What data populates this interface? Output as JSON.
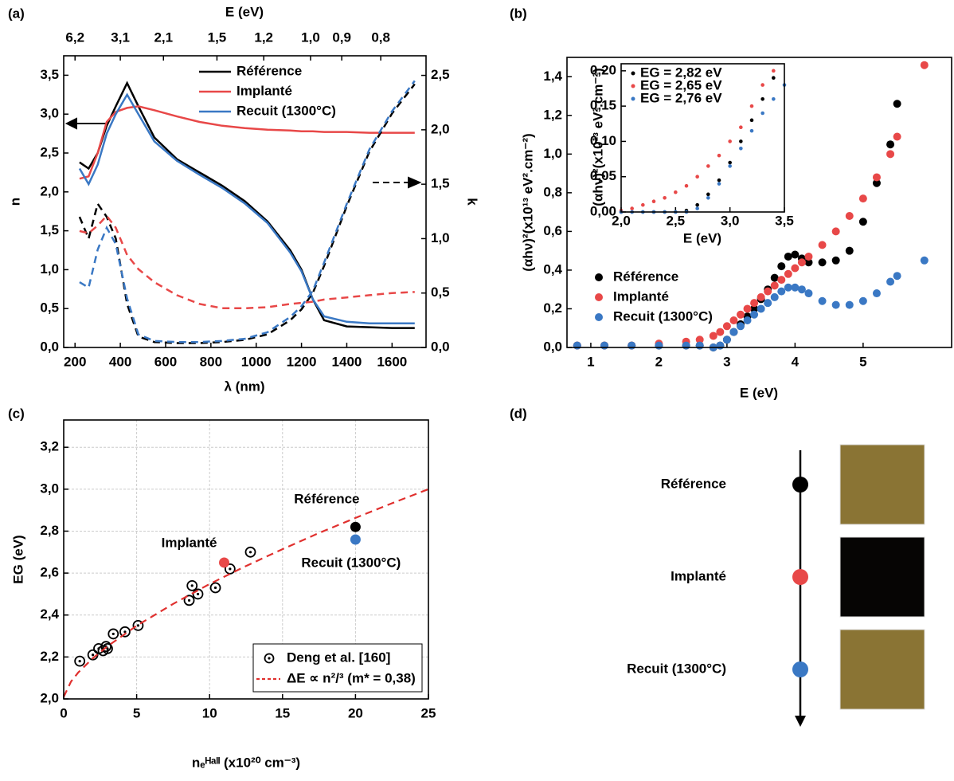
{
  "chart_data": [
    {
      "type": "line",
      "label": "(a)",
      "xlabel": "λ (nm)",
      "ylabel": "n",
      "y2label": "k",
      "x2label": "E (eV)",
      "x": [
        220,
        260,
        300,
        340,
        380,
        430,
        480,
        550,
        650,
        750,
        850,
        950,
        1050,
        1150,
        1200,
        1250,
        1300,
        1400,
        1500,
        1600,
        1700
      ],
      "series": [
        {
          "name": "Référence",
          "color": "#000000",
          "values": [
            2.38,
            2.3,
            2.5,
            2.85,
            3.1,
            3.4,
            3.1,
            2.7,
            2.42,
            2.25,
            2.08,
            1.88,
            1.62,
            1.25,
            1.0,
            0.62,
            0.35,
            0.27,
            0.26,
            0.25,
            0.25
          ]
        },
        {
          "name": "Implanté",
          "color": "#e84848",
          "values": [
            2.17,
            2.2,
            2.5,
            2.9,
            3.03,
            3.08,
            3.1,
            3.05,
            2.97,
            2.9,
            2.85,
            2.82,
            2.8,
            2.79,
            2.78,
            2.78,
            2.77,
            2.77,
            2.76,
            2.76,
            2.76
          ]
        },
        {
          "name": "Recuit (1300°C)",
          "color": "#3a78c4",
          "values": [
            2.3,
            2.1,
            2.35,
            2.75,
            3.0,
            3.25,
            3.0,
            2.65,
            2.4,
            2.22,
            2.05,
            1.85,
            1.6,
            1.22,
            0.98,
            0.62,
            0.4,
            0.33,
            0.31,
            0.31,
            0.31
          ]
        },
        {
          "color": "#000000",
          "axis": "y2",
          "dash": true,
          "values": [
            1.2,
            1.0,
            1.32,
            1.2,
            1.0,
            0.4,
            0.1,
            0.05,
            0.04,
            0.04,
            0.05,
            0.07,
            0.12,
            0.25,
            0.35,
            0.5,
            0.75,
            1.3,
            1.8,
            2.15,
            2.42
          ]
        },
        {
          "color": "#e84848",
          "axis": "y2",
          "dash": true,
          "values": [
            1.07,
            1.05,
            1.12,
            1.21,
            1.1,
            0.85,
            0.72,
            0.6,
            0.48,
            0.4,
            0.36,
            0.36,
            0.37,
            0.4,
            0.41,
            0.42,
            0.44,
            0.46,
            0.48,
            0.5,
            0.51
          ]
        },
        {
          "color": "#3a78c4",
          "axis": "y2",
          "dash": true,
          "values": [
            0.6,
            0.55,
            0.9,
            1.1,
            0.95,
            0.45,
            0.12,
            0.06,
            0.05,
            0.05,
            0.06,
            0.08,
            0.14,
            0.28,
            0.38,
            0.52,
            0.78,
            1.32,
            1.82,
            2.17,
            2.45
          ]
        }
      ],
      "xlim": [
        150,
        1750
      ],
      "xticks": [
        200,
        400,
        600,
        800,
        1000,
        1200,
        1400,
        1600
      ],
      "ylim": [
        0,
        3.75
      ],
      "yticks": [
        {
          "value": 0,
          "label": "0,0"
        },
        {
          "value": 0.5,
          "label": "0,5"
        },
        {
          "value": 1,
          "label": "1,0"
        },
        {
          "value": 1.5,
          "label": "1,5"
        },
        {
          "value": 2,
          "label": "2,0"
        },
        {
          "value": 2.5,
          "label": "2,5"
        },
        {
          "value": 3,
          "label": "3,0"
        },
        {
          "value": 3.5,
          "label": "3,5"
        }
      ],
      "y2lim": [
        0,
        2.68
      ],
      "y2ticks": [
        {
          "value": 0,
          "label": "0,0"
        },
        {
          "value": 0.5,
          "label": "0,5"
        },
        {
          "value": 1,
          "label": "1,0"
        },
        {
          "value": 1.5,
          "label": "1,5"
        },
        {
          "value": 2,
          "label": "2,0"
        },
        {
          "value": 2.5,
          "label": "2,5"
        }
      ],
      "x2scale": "reciprocal",
      "x2lim": [
        8.267,
        0.7086
      ],
      "x2ticks": [
        {
          "value": 6.2,
          "label": "6,2"
        },
        {
          "value": 3.1,
          "label": "3,1"
        },
        {
          "value": 2.1,
          "label": "2,1"
        },
        {
          "value": 1.5,
          "label": "1,5"
        },
        {
          "value": 1.2,
          "label": "1,2"
        },
        {
          "value": 1.0,
          "label": "1,0"
        },
        {
          "value": 0.9,
          "label": "0,9"
        },
        {
          "value": 0.8,
          "label": "0,8"
        }
      ]
    },
    {
      "type": "scatter",
      "label": "(b)",
      "xlabel": "E (eV)",
      "ylabel": "(αhν)²(x10¹³ eV².cm⁻²)",
      "x": [
        0.8,
        1.2,
        1.6,
        2.0,
        2.4,
        2.6,
        2.8,
        2.9,
        3.0,
        3.1,
        3.2,
        3.3,
        3.4,
        3.5,
        3.6,
        3.7,
        3.8,
        3.9,
        4.0,
        4.1,
        4.2,
        4.4,
        4.6,
        4.8,
        5.0,
        5.2,
        5.4,
        5.5,
        5.9
      ],
      "series": [
        {
          "name": "Référence",
          "color": "#000000",
          "values": [
            0.01,
            0.01,
            0.01,
            0.01,
            0.01,
            0.01,
            0.0,
            0.01,
            0.04,
            0.08,
            0.12,
            0.16,
            0.2,
            0.25,
            0.3,
            0.36,
            0.42,
            0.47,
            0.48,
            0.46,
            0.44,
            0.44,
            0.45,
            0.5,
            0.65,
            0.85,
            1.05,
            1.26,
            null
          ]
        },
        {
          "name": "Implanté",
          "color": "#e84848",
          "values": [
            0.01,
            0.01,
            0.01,
            0.02,
            0.03,
            0.04,
            0.06,
            0.08,
            0.11,
            0.14,
            0.17,
            0.2,
            0.23,
            0.26,
            0.29,
            0.32,
            0.35,
            0.38,
            0.41,
            0.44,
            0.47,
            0.53,
            0.6,
            0.68,
            0.77,
            0.88,
            1.0,
            1.09,
            1.46
          ]
        },
        {
          "name": "Recuit (1300°C)",
          "color": "#3a78c4",
          "values": [
            0.01,
            0.01,
            0.01,
            0.01,
            0.01,
            0.01,
            0.0,
            0.01,
            0.04,
            0.08,
            0.11,
            0.14,
            0.17,
            0.2,
            0.23,
            0.26,
            0.29,
            0.31,
            0.31,
            0.3,
            0.28,
            0.24,
            0.22,
            0.22,
            0.24,
            0.28,
            0.34,
            0.37,
            0.45
          ]
        }
      ],
      "xlim": [
        0.65,
        6.3
      ],
      "xticks": [
        1,
        2,
        3,
        4,
        5
      ],
      "ylim": [
        0,
        1.5
      ],
      "yticks": [
        {
          "value": 0,
          "label": "0,0"
        },
        {
          "value": 0.2,
          "label": "0,2"
        },
        {
          "value": 0.4,
          "label": "0,4"
        },
        {
          "value": 0.6,
          "label": "0,6"
        },
        {
          "value": 0.8,
          "label": "0,8"
        },
        {
          "value": 1.0,
          "label": "1,0"
        },
        {
          "value": 1.2,
          "label": "1,2"
        },
        {
          "value": 1.4,
          "label": "1,4"
        }
      ],
      "legend": "center left"
    },
    {
      "type": "scatter",
      "xlabel": "E (eV)",
      "ylabel": "(αhν)²(x10¹³ eV².cm⁻²)",
      "x": [
        2.0,
        2.1,
        2.2,
        2.3,
        2.4,
        2.5,
        2.6,
        2.7,
        2.8,
        2.9,
        3.0,
        3.1,
        3.2,
        3.3,
        3.4,
        3.5
      ],
      "series": [
        {
          "name": "EG = 2,82 eV",
          "color": "#000000",
          "values": [
            0,
            0,
            0,
            0,
            0,
            0,
            0.002,
            0.01,
            0.025,
            0.045,
            0.07,
            0.1,
            0.13,
            0.16,
            0.19,
            null
          ]
        },
        {
          "name": "EG = 2,65 eV",
          "color": "#e84848",
          "values": [
            0.002,
            0.005,
            0.01,
            0.015,
            0.02,
            0.028,
            0.037,
            0.05,
            0.065,
            0.08,
            0.1,
            0.12,
            0.15,
            0.18,
            0.2,
            null
          ]
        },
        {
          "name": "EG = 2,76 eV",
          "color": "#3a78c4",
          "values": [
            0,
            0,
            0,
            0,
            0,
            0,
            0,
            0.005,
            0.02,
            0.04,
            0.065,
            0.09,
            0.115,
            0.14,
            0.16,
            0.18
          ]
        }
      ],
      "xlim": [
        2.0,
        3.5
      ],
      "xticks": [
        {
          "value": 2,
          "label": "2,0"
        },
        {
          "value": 2.5,
          "label": "2,5"
        },
        {
          "value": 3,
          "label": "3,0"
        },
        {
          "value": 3.5,
          "label": "3,5"
        }
      ],
      "ylim": [
        0,
        0.21
      ],
      "yticks": [
        {
          "value": 0,
          "label": "0,00"
        },
        {
          "value": 0.05,
          "label": "0,05"
        },
        {
          "value": 0.1,
          "label": "0,10"
        },
        {
          "value": 0.15,
          "label": "0,15"
        },
        {
          "value": 0.2,
          "label": "0,20"
        }
      ],
      "legend": "upper left"
    },
    {
      "type": "scatter",
      "label": "(c)",
      "xlabel": "nₑᴴᵃˡˡ (x10²⁰ cm⁻³)",
      "ylabel": "EG (eV)",
      "series": [
        {
          "name": "Deng et al. [160]",
          "color": "#000000",
          "marker": "circle-dot",
          "x": [
            1.1,
            2.0,
            2.4,
            2.7,
            2.9,
            3.0,
            3.4,
            4.2,
            5.1,
            8.6,
            8.8,
            9.2,
            10.4,
            11.4,
            12.8
          ],
          "values": [
            2.18,
            2.21,
            2.24,
            2.23,
            2.25,
            2.24,
            2.31,
            2.32,
            2.35,
            2.47,
            2.54,
            2.5,
            2.53,
            2.62,
            2.7
          ]
        },
        {
          "name": "ΔE ∝ n²/³ (m* = 0,38)",
          "color": "#e0302e",
          "type": "line",
          "dash": true,
          "x": [
            0,
            0.5,
            1,
            2,
            3,
            5,
            7.5,
            10,
            12.5,
            15,
            17.5,
            20,
            22.5,
            25
          ],
          "values": [
            2.01,
            2.083,
            2.126,
            2.194,
            2.251,
            2.349,
            2.453,
            2.548,
            2.634,
            2.714,
            2.791,
            2.863,
            2.933,
            3.0
          ]
        }
      ],
      "points": [
        {
          "label": "Référence",
          "x": 20,
          "y": 2.82,
          "color": "#000000"
        },
        {
          "label": "Implanté",
          "x": 11,
          "y": 2.65,
          "color": "#e84848"
        },
        {
          "label": "Recuit (1300°C)",
          "x": 20,
          "y": 2.76,
          "color": "#3a78c4"
        }
      ],
      "xlim": [
        0,
        25
      ],
      "xticks": [
        0,
        5,
        10,
        15,
        20,
        25
      ],
      "ylim": [
        2.0,
        3.33
      ],
      "yticks": [
        {
          "value": 2,
          "label": "2,0"
        },
        {
          "value": 2.2,
          "label": "2,2"
        },
        {
          "value": 2.4,
          "label": "2,4"
        },
        {
          "value": 2.6,
          "label": "2,6"
        },
        {
          "value": 2.8,
          "label": "2,8"
        },
        {
          "value": 3,
          "label": "3,0"
        },
        {
          "value": 3.2,
          "label": "3,2"
        }
      ],
      "grid": true,
      "legend": "lower right"
    }
  ],
  "diagram": {
    "label": "(d)",
    "items": [
      {
        "text": "Référence",
        "color": "#000000",
        "swatch": "#8a7434"
      },
      {
        "text": "Implanté",
        "color": "#e84848",
        "swatch": "#060504"
      },
      {
        "text": "Recuit (1300°C)",
        "color": "#3a78c4",
        "swatch": "#8a7434"
      }
    ]
  }
}
